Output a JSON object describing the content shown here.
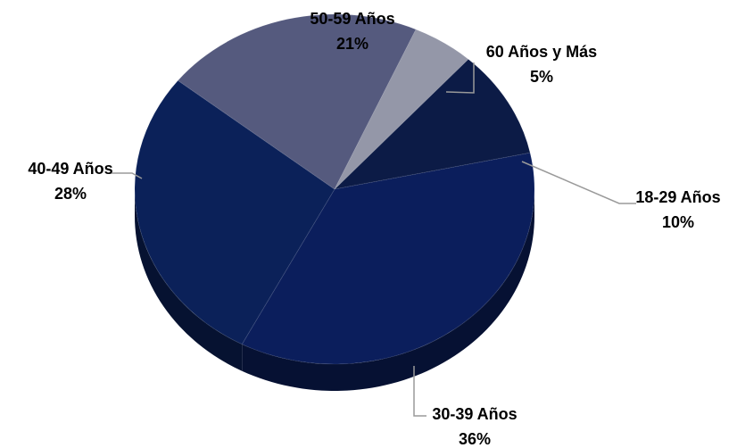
{
  "chart_data": {
    "type": "pie",
    "title": "",
    "style": "3d",
    "slices": [
      {
        "label": "18-29 Años",
        "value": 10,
        "value_label": "10%",
        "color": "#0c1b46"
      },
      {
        "label": "30-39 Años",
        "value": 36,
        "value_label": "36%",
        "color": "#0b1e5c"
      },
      {
        "label": "40-49 Años",
        "value": 28,
        "value_label": "28%",
        "color": "#0b2159"
      },
      {
        "label": "50-59 Años",
        "value": 21,
        "value_label": "21%",
        "color": "#555a7e"
      },
      {
        "label": "60 Años y Más",
        "value": 5,
        "value_label": "5%",
        "color": "#9497a8"
      }
    ]
  }
}
